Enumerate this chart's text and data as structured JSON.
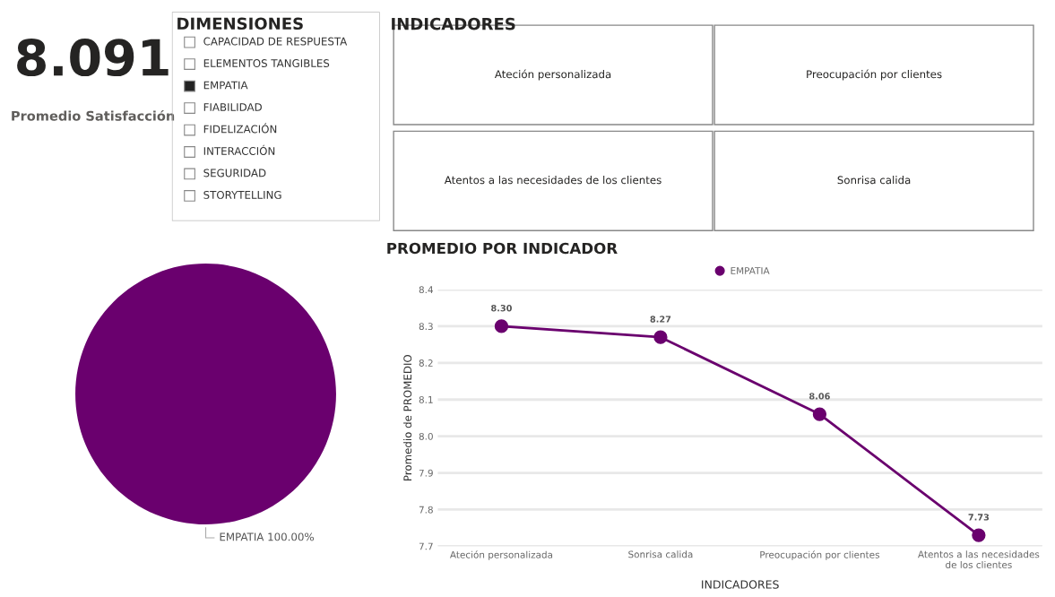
{
  "chart_data": [
    {
      "type": "other",
      "annotations": [
        "8.091",
        "Promedio Satisfacción"
      ]
    },
    {
      "type": "other",
      "title": "DIMENSIONES",
      "categories": [
        "CAPACIDAD DE RESPUESTA",
        "ELEMENTOS TANGIBLES",
        "EMPATIA",
        "FIABILIDAD",
        "FIDELIZACIÓN",
        "INTERACCIÓN",
        "SEGURIDAD",
        "STORYTELLING"
      ],
      "colors": [
        "#ffffff",
        "#ffffff",
        "#222222",
        "#ffffff",
        "#ffffff",
        "#ffffff",
        "#ffffff",
        "#ffffff"
      ]
    },
    {
      "type": "other",
      "title": "INDICADORES",
      "categories": [
        "Ateción personalizada",
        "Preocupación por clientes",
        "Atentos a las necesidades de los clientes",
        "Sonrisa calida"
      ]
    },
    {
      "type": "pie",
      "categories": [
        "EMPATIA"
      ],
      "values": [
        100
      ],
      "colors": [
        "#6a006e"
      ],
      "value_labels": [
        "100.00%"
      ]
    },
    {
      "type": "line",
      "title": "PROMEDIO POR INDICADOR",
      "xlabel": "INDICADORES",
      "ylabel": "Promedio de PROMEDIO",
      "categories": [
        "Ateción personalizada",
        "Sonrisa calida",
        "Preocupación por clientes",
        "Atentos a las necesidades de los clientes"
      ],
      "series": [
        {
          "name": "EMPATIA",
          "color": "#6a006e",
          "values": [
            8.3,
            8.27,
            8.06,
            7.73
          ],
          "value_labels": [
            "8.30",
            "8.27",
            "8.06",
            "7.73"
          ]
        }
      ],
      "ylim": [
        7.7,
        8.4
      ],
      "yticks": [
        7.7,
        7.8,
        7.9,
        {
          "value": 8,
          "label": "8.0"
        },
        8.1,
        8.2,
        8.3,
        8.4
      ],
      "grid": "y",
      "legend": "top",
      "marker": "circle",
      "line_style": "solid"
    }
  ]
}
